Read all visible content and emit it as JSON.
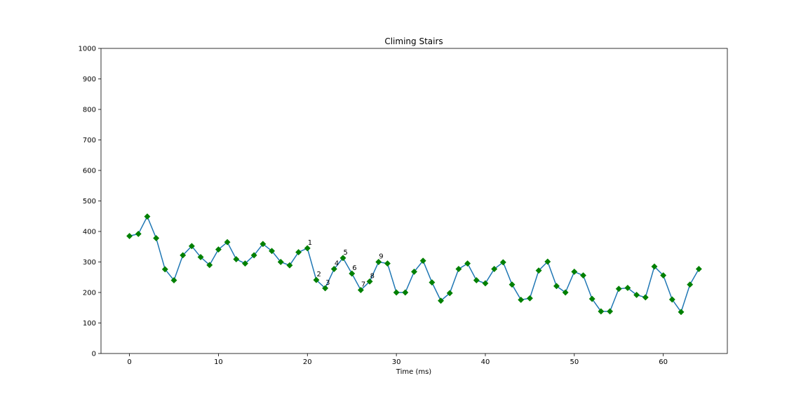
{
  "chart_data": {
    "type": "line",
    "title": "Climing Stairs",
    "xlabel": "Time (ms)",
    "ylabel": "",
    "xlim": [
      -3.2,
      67.2
    ],
    "ylim": [
      0,
      1000
    ],
    "xticks": [
      0,
      10,
      20,
      30,
      40,
      50,
      60
    ],
    "yticks": [
      0,
      100,
      200,
      300,
      400,
      500,
      600,
      700,
      800,
      900,
      1000
    ],
    "grid": false,
    "line_color": "#1f77b4",
    "marker_color": "#008000",
    "marker": "diamond",
    "series": [
      {
        "x": [
          0,
          1,
          2,
          3,
          4,
          5,
          6,
          7,
          8,
          9,
          10,
          11,
          12,
          13,
          14,
          15,
          16,
          17,
          18,
          19,
          20,
          21,
          22,
          23,
          24,
          25,
          26,
          27,
          28,
          29,
          30,
          31,
          32,
          33,
          34,
          35,
          36,
          37,
          38,
          39,
          40,
          41,
          42,
          43,
          44,
          45,
          46,
          47,
          48,
          49,
          50,
          51,
          52,
          53,
          54,
          55,
          56,
          57,
          58,
          59,
          60,
          61,
          62,
          63,
          64
        ],
        "values": [
          385,
          392,
          449,
          378,
          276,
          240,
          322,
          352,
          316,
          290,
          341,
          365,
          309,
          295,
          322,
          359,
          336,
          300,
          289,
          332,
          345,
          241,
          214,
          277,
          313,
          262,
          208,
          236,
          300,
          295,
          200,
          200,
          268,
          304,
          233,
          173,
          198,
          277,
          295,
          240,
          230,
          277,
          299,
          226,
          176,
          181,
          272,
          301,
          221,
          200,
          268,
          256,
          179,
          138,
          138,
          212,
          215,
          192,
          184,
          285,
          256,
          177,
          136,
          226,
          277
        ]
      }
    ],
    "annotations": [
      {
        "x": 20,
        "y": 345,
        "text": "1"
      },
      {
        "x": 21,
        "y": 241,
        "text": "2"
      },
      {
        "x": 22,
        "y": 214,
        "text": "3"
      },
      {
        "x": 23,
        "y": 277,
        "text": "4"
      },
      {
        "x": 24,
        "y": 313,
        "text": "5"
      },
      {
        "x": 25,
        "y": 262,
        "text": "6"
      },
      {
        "x": 26,
        "y": 208,
        "text": "7"
      },
      {
        "x": 27,
        "y": 236,
        "text": "8"
      },
      {
        "x": 28,
        "y": 300,
        "text": "9"
      }
    ]
  }
}
